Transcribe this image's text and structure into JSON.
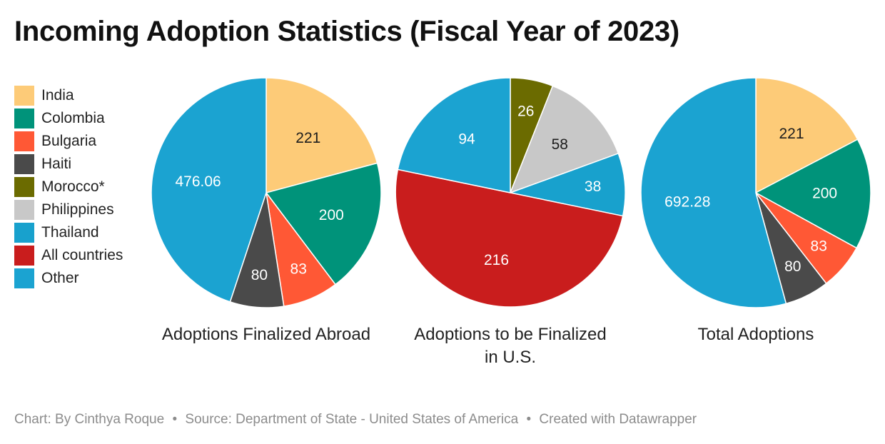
{
  "title": "Incoming Adoption Statistics (Fiscal Year of 2023)",
  "legend": [
    {
      "label": "India",
      "color": "#fdcb78"
    },
    {
      "label": "Colombia",
      "color": "#00937a"
    },
    {
      "label": "Bulgaria",
      "color": "#ff5835"
    },
    {
      "label": "Haiti",
      "color": "#4a4a4a"
    },
    {
      "label": "Morocco*",
      "color": "#6b6b00"
    },
    {
      "label": "Philippines",
      "color": "#c8c8c8"
    },
    {
      "label": "Thailand",
      "color": "#18a1cd"
    },
    {
      "label": "All countries",
      "color": "#c91d1d"
    },
    {
      "label": "Other",
      "color": "#1ba3d1"
    }
  ],
  "chart_data": [
    {
      "type": "pie",
      "title": "Adoptions Finalized Abroad",
      "slices": [
        {
          "label": "India",
          "value": 221,
          "display": "221",
          "color": "#fdcb78",
          "text_color": "#1d1d1d"
        },
        {
          "label": "Colombia",
          "value": 200,
          "display": "200",
          "color": "#00937a",
          "text_color": "#ffffff"
        },
        {
          "label": "Bulgaria",
          "value": 83,
          "display": "83",
          "color": "#ff5835",
          "text_color": "#ffffff"
        },
        {
          "label": "Haiti",
          "value": 80,
          "display": "80",
          "color": "#4a4a4a",
          "text_color": "#ffffff"
        },
        {
          "label": "Other",
          "value": 476.06,
          "display": "476.06",
          "color": "#1ba3d1",
          "text_color": "#ffffff"
        }
      ]
    },
    {
      "type": "pie",
      "title": "Adoptions to be Finalized in U.S.",
      "slices": [
        {
          "label": "Morocco*",
          "value": 26,
          "display": "26",
          "color": "#6b6b00",
          "text_color": "#ffffff"
        },
        {
          "label": "Philippines",
          "value": 58,
          "display": "58",
          "color": "#c8c8c8",
          "text_color": "#1d1d1d"
        },
        {
          "label": "Thailand",
          "value": 38,
          "display": "38",
          "color": "#18a1cd",
          "text_color": "#ffffff"
        },
        {
          "label": "All countries",
          "value": 216,
          "display": "216",
          "color": "#c91d1d",
          "text_color": "#ffffff"
        },
        {
          "label": "Other",
          "value": 94,
          "display": "94",
          "color": "#1ba3d1",
          "text_color": "#ffffff"
        }
      ]
    },
    {
      "type": "pie",
      "title": "Total Adoptions",
      "slices": [
        {
          "label": "India",
          "value": 221,
          "display": "221",
          "color": "#fdcb78",
          "text_color": "#1d1d1d"
        },
        {
          "label": "Colombia",
          "value": 200,
          "display": "200",
          "color": "#00937a",
          "text_color": "#ffffff"
        },
        {
          "label": "Bulgaria",
          "value": 83,
          "display": "83",
          "color": "#ff5835",
          "text_color": "#ffffff"
        },
        {
          "label": "Haiti",
          "value": 80,
          "display": "80",
          "color": "#4a4a4a",
          "text_color": "#ffffff"
        },
        {
          "label": "Other",
          "value": 692.28,
          "display": "692.28",
          "color": "#1ba3d1",
          "text_color": "#ffffff"
        }
      ]
    }
  ],
  "footer": {
    "credit": "Chart: By Cinthya Roque",
    "source": "Source: Department of State - United States of America",
    "tool": "Created with Datawrapper",
    "separator": "•"
  }
}
